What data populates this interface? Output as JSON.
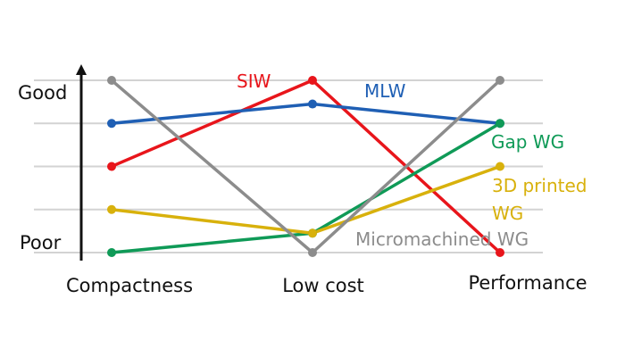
{
  "chart_data": {
    "type": "line",
    "title": "",
    "xlabel": "",
    "ylabel": "",
    "categories": [
      "Compactness",
      "Low cost",
      "Performance"
    ],
    "y_tick_labels": {
      "top": "Good",
      "bottom": "Poor"
    },
    "ylim": [
      0,
      4
    ],
    "grid": true,
    "series": [
      {
        "name": "SIW",
        "values": [
          2,
          4,
          0
        ],
        "color": "#e8151b",
        "label_lines": [
          "SIW"
        ]
      },
      {
        "name": "MLW",
        "values": [
          3,
          3.45,
          3
        ],
        "color": "#1f5fb4",
        "label_lines": [
          "MLW"
        ]
      },
      {
        "name": "Gap WG",
        "values": [
          0,
          0.45,
          3
        ],
        "color": "#0f9a57",
        "label_lines": [
          "Gap WG"
        ]
      },
      {
        "name": "3D printed WG",
        "values": [
          1,
          0.45,
          2
        ],
        "color": "#d8b10c",
        "label_lines": [
          "3D printed",
          "WG"
        ]
      },
      {
        "name": "Micromachined WG",
        "values": [
          4,
          0,
          4
        ],
        "color": "#8c8c8c",
        "label_lines": [
          "Micromachined WG"
        ]
      }
    ]
  }
}
